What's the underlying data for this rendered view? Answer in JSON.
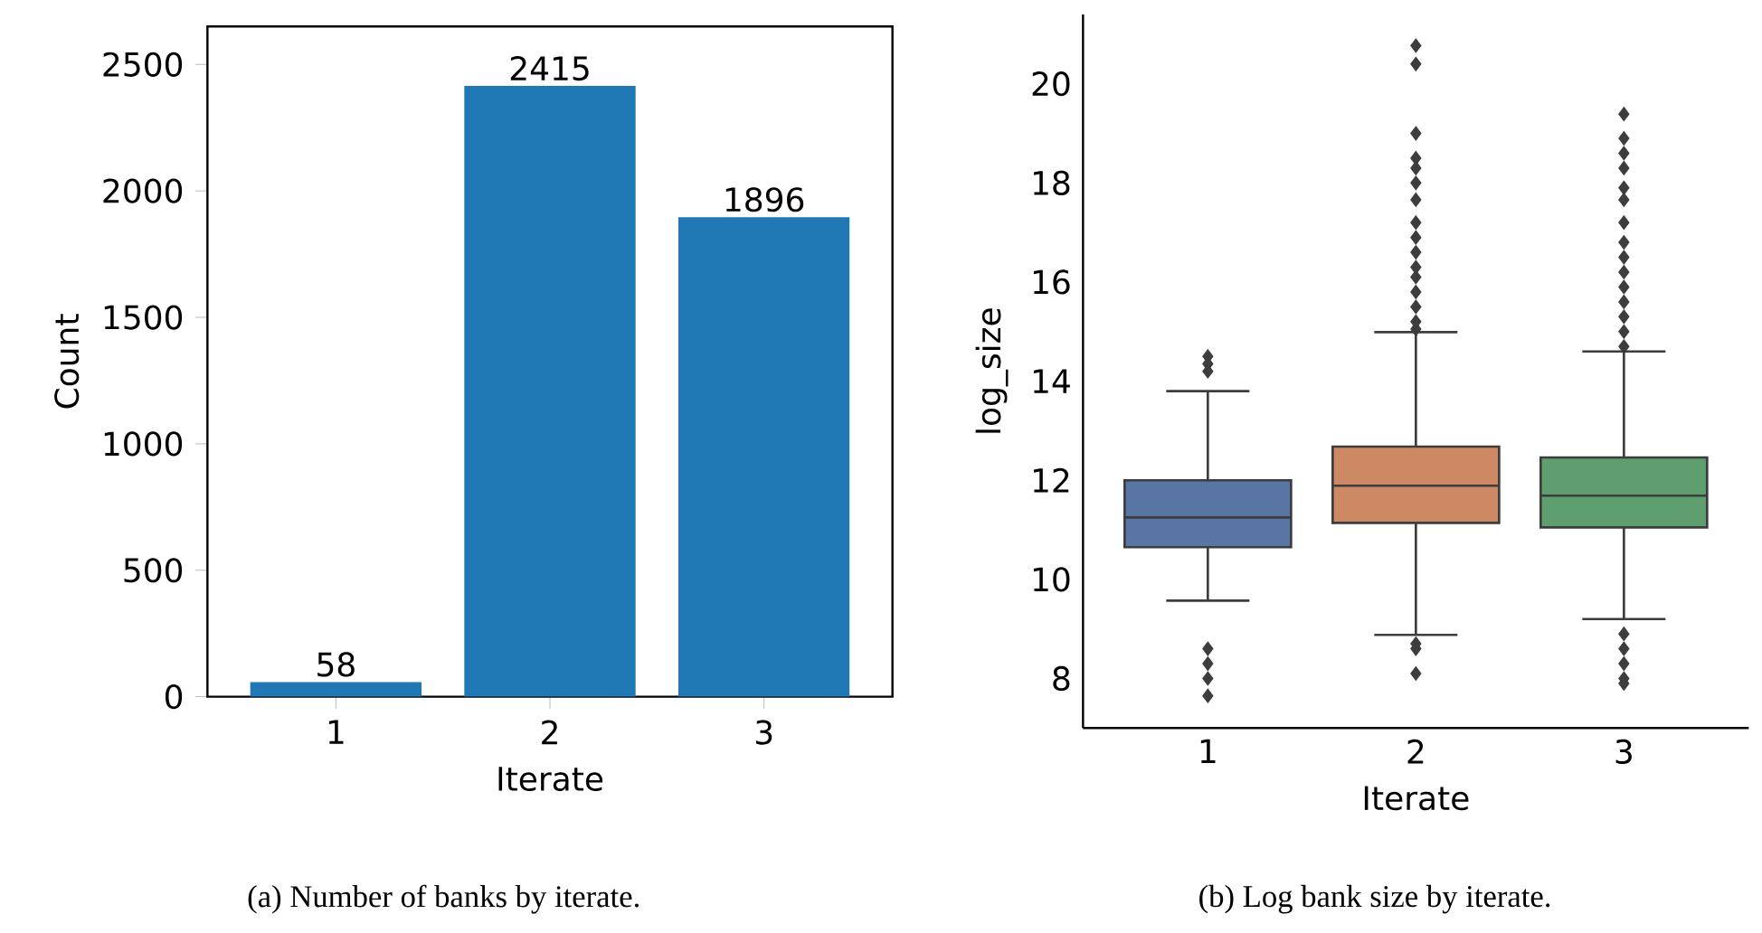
{
  "chart_data": [
    {
      "type": "bar",
      "categories": [
        "1",
        "2",
        "3"
      ],
      "values": [
        58,
        2415,
        1896
      ],
      "color": "#1f77b4",
      "ylim": [
        0,
        2650
      ],
      "yticks": [
        0,
        500,
        1000,
        1500,
        2000,
        2500
      ],
      "xlabel": "Iterate",
      "ylabel": "Count",
      "data_labels": true,
      "annotations": [
        "(a) Number of banks by iterate."
      ]
    },
    {
      "type": "box",
      "categories": [
        "1",
        "2",
        "3"
      ],
      "colors": [
        "#5875a4",
        "#cc8963",
        "#5f9e6e"
      ],
      "ylim": [
        7,
        21.4
      ],
      "yticks": [
        8,
        10,
        12,
        14,
        16,
        18,
        20
      ],
      "xlabel": "Iterate",
      "ylabel": "log_size",
      "marker": "diamond",
      "boxes": [
        {
          "low": 9.57,
          "q1": 10.65,
          "median": 11.25,
          "q3": 12.0,
          "high": 13.8,
          "outliers": [
            14.5,
            14.35,
            14.2,
            8.6,
            8.3,
            8.0,
            7.65
          ]
        },
        {
          "low": 8.88,
          "q1": 11.14,
          "median": 11.89,
          "q3": 12.68,
          "high": 14.99,
          "outliers": [
            20.77,
            20.4,
            19.0,
            18.5,
            18.3,
            18.0,
            17.66,
            17.2,
            16.9,
            16.6,
            16.3,
            16.1,
            15.8,
            15.5,
            15.2,
            15.05,
            8.7,
            8.6,
            8.1
          ]
        },
        {
          "low": 9.2,
          "q1": 11.05,
          "median": 11.69,
          "q3": 12.46,
          "high": 14.6,
          "outliers": [
            19.39,
            18.9,
            18.6,
            18.3,
            17.9,
            17.66,
            17.2,
            16.8,
            16.5,
            16.2,
            15.9,
            15.6,
            15.3,
            15.0,
            14.7,
            8.9,
            8.6,
            8.3,
            8.0,
            7.9
          ]
        }
      ],
      "annotations": [
        "(b) Log bank size by iterate."
      ]
    }
  ]
}
